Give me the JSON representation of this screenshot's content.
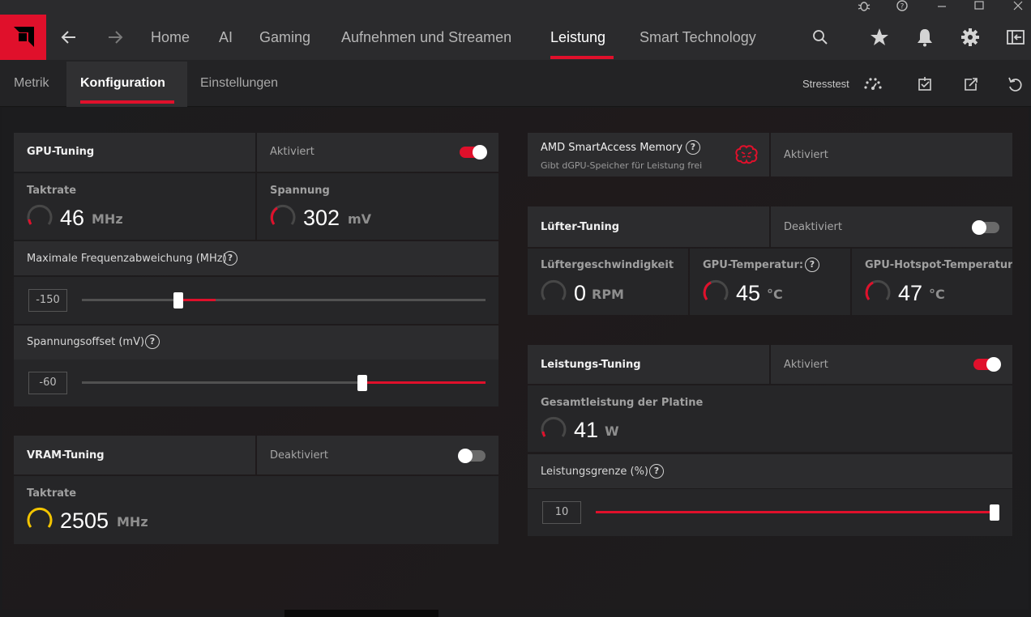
{
  "window": {
    "controls": [
      "bug-icon",
      "help-icon",
      "minimize-icon",
      "maximize-icon",
      "close-icon"
    ]
  },
  "nav": {
    "items": [
      {
        "label": "Home"
      },
      {
        "label": "AI"
      },
      {
        "label": "Gaming"
      },
      {
        "label": "Aufnehmen und Streamen"
      },
      {
        "label": "Leistung"
      },
      {
        "label": "Smart Technology"
      }
    ],
    "active": "Leistung",
    "accent": "#e0102b"
  },
  "subnav": {
    "tabs": [
      {
        "label": "Metrik"
      },
      {
        "label": "Konfiguration"
      },
      {
        "label": "Einstellungen"
      }
    ],
    "active": "Konfiguration",
    "stresstest_label": "Stresstest"
  },
  "gpu_tuning": {
    "title": "GPU-Tuning",
    "status": "Aktiviert",
    "enabled": true,
    "clock": {
      "label": "Taktrate",
      "value": "46",
      "unit": "MHz"
    },
    "voltage": {
      "label": "Spannung",
      "value": "302",
      "unit": "mV"
    },
    "max_freq_offset": {
      "label": "Maximale Frequenzabweichung (MHz)",
      "value": "-150"
    },
    "voltage_offset": {
      "label": "Spannungsoffset (mV)",
      "value": "-60"
    }
  },
  "vram_tuning": {
    "title": "VRAM-Tuning",
    "status": "Deaktiviert",
    "enabled": false,
    "clock": {
      "label": "Taktrate",
      "value": "2505",
      "unit": "MHz"
    }
  },
  "smart_access": {
    "title": "AMD SmartAccess Memory",
    "subtitle": "Gibt dGPU-Speicher für Leistung frei",
    "status": "Aktiviert"
  },
  "fan_tuning": {
    "title": "Lüfter-Tuning",
    "status": "Deaktiviert",
    "enabled": false,
    "fan_speed": {
      "label": "Lüftergeschwindigkeit",
      "value": "0",
      "unit": "RPM"
    },
    "gpu_temp": {
      "label": "GPU-Temperatur:",
      "value": "45",
      "unit": "°C"
    },
    "hotspot_temp": {
      "label": "GPU-Hotspot-Temperatur",
      "value": "47",
      "unit": "°C"
    }
  },
  "power_tuning": {
    "title": "Leistungs-Tuning",
    "status": "Aktiviert",
    "enabled": true,
    "board_power": {
      "label": "Gesamtleistung der Platine",
      "value": "41",
      "unit": "W"
    },
    "power_limit": {
      "label": "Leistungsgrenze (%)",
      "value": "10"
    }
  }
}
